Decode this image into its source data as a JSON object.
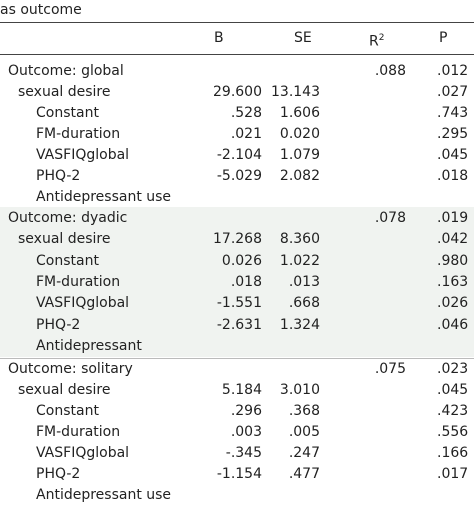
{
  "caption": "as outcome",
  "header": {
    "b": "B",
    "se": "SE",
    "r2": "R",
    "r2_sup": "2",
    "p": "P"
  },
  "groups": [
    {
      "rows": [
        [
          "Outcome: global",
          null,
          null,
          ".088",
          ".012"
        ],
        [
          "sexual desire",
          "29.600",
          "13.143",
          null,
          ".027"
        ],
        [
          "Constant",
          ".528",
          "1.606",
          null,
          ".743"
        ],
        [
          "FM-duration",
          ".021",
          "0.020",
          null,
          ".295"
        ],
        [
          "VASFIQglobal",
          "-2.104",
          "1.079",
          null,
          ".045"
        ],
        [
          "PHQ-2",
          "-5.029",
          "2.082",
          null,
          ".018"
        ],
        [
          "Antidepressant use",
          null,
          null,
          null,
          null
        ]
      ]
    },
    {
      "rows": [
        [
          "Outcome: dyadic",
          null,
          null,
          ".078",
          ".019"
        ],
        [
          "sexual desire",
          "17.268",
          "8.360",
          null,
          ".042"
        ],
        [
          "Constant",
          "0.026",
          "1.022",
          null,
          ".980"
        ],
        [
          "FM-duration",
          ".018",
          ".013",
          null,
          ".163"
        ],
        [
          "VASFIQglobal",
          "-1.551",
          ".668",
          null,
          ".026"
        ],
        [
          "PHQ-2",
          "-2.631",
          "1.324",
          null,
          ".046"
        ],
        [
          "Antidepressant",
          null,
          null,
          null,
          null
        ]
      ]
    },
    {
      "rows": [
        [
          "Outcome: solitary",
          null,
          null,
          ".075",
          ".023"
        ],
        [
          "sexual desire",
          "5.184",
          "3.010",
          null,
          ".045"
        ],
        [
          "Constant",
          ".296",
          ".368",
          null,
          ".423"
        ],
        [
          "FM-duration",
          ".003",
          ".005",
          null,
          ".556"
        ],
        [
          "VASFIQglobal",
          "-.345",
          ".247",
          null,
          ".166"
        ],
        [
          "PHQ-2",
          "-1.154",
          ".477",
          null,
          ".017"
        ],
        [
          "Antidepressant use",
          null,
          null,
          null,
          null
        ]
      ]
    }
  ]
}
